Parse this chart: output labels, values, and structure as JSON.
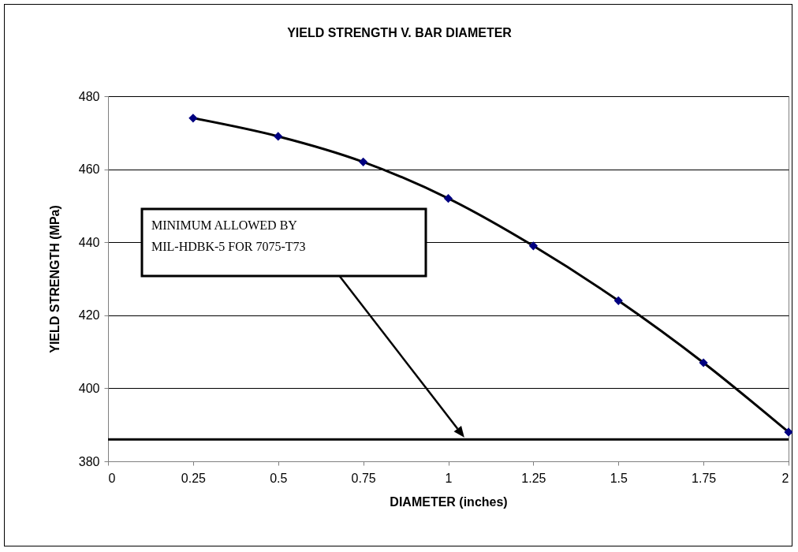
{
  "chart_data": {
    "type": "line",
    "title": "YIELD STRENGTH V. BAR DIAMETER",
    "xlabel": "DIAMETER (inches)",
    "ylabel": "YIELD STRENGTH (MPa)",
    "x": [
      0.25,
      0.5,
      0.75,
      1,
      1.25,
      1.5,
      1.75,
      2
    ],
    "series": [
      {
        "color": "#000000",
        "values": [
          474,
          469,
          462,
          452,
          439,
          424,
          407,
          388
        ]
      }
    ],
    "marker": "diamond",
    "line_style": "solid",
    "xlim": [
      0,
      2
    ],
    "xticks": [
      0,
      0.25,
      0.5,
      0.75,
      1,
      1.25,
      1.5,
      1.75,
      2
    ],
    "ylim": [
      380,
      480
    ],
    "yticks": [
      380,
      400,
      420,
      440,
      460,
      480
    ],
    "grid": "y",
    "ref_lines": [
      {
        "axis": "y",
        "value": 386,
        "label": "MINIMUM ALLOWED BY MIL-HDBK-5 FOR 7075-T73",
        "color": "#000000",
        "line_style": "solid"
      }
    ]
  }
}
